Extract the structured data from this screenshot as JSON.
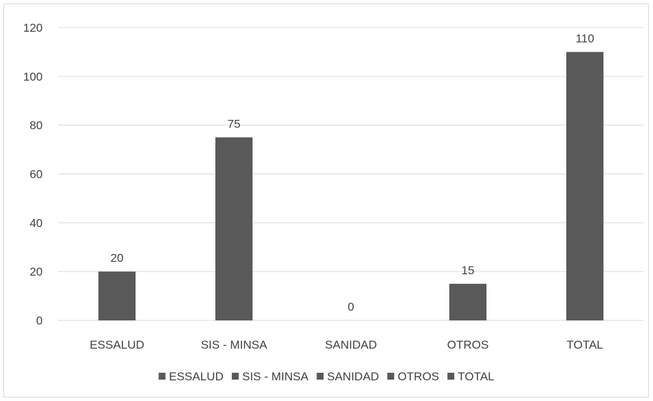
{
  "chart_data": {
    "type": "bar",
    "categories": [
      "ESSALUD",
      "SIS - MINSA",
      "SANIDAD",
      "OTROS",
      "TOTAL"
    ],
    "values": [
      20,
      75,
      0,
      15,
      110
    ],
    "yticks": [
      0,
      20,
      40,
      60,
      80,
      100,
      120
    ],
    "ylim": [
      0,
      120
    ],
    "grid": true,
    "legend": {
      "placement": "bottom",
      "entries": [
        "ESSALUD",
        "SIS - MINSA",
        "SANIDAD",
        "OTROS",
        "TOTAL"
      ]
    },
    "bar_color": "#595959",
    "gridline_color": "#d9d9d9",
    "text_color": "#404040"
  }
}
